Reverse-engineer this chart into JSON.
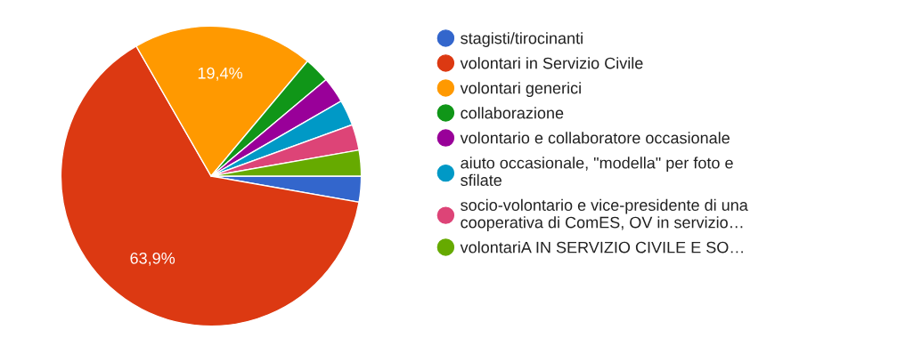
{
  "chart_data": {
    "type": "pie",
    "legend": "right",
    "categories": [
      "stagisti/tirocinanti",
      "volontari in Servizio Civile",
      "volontari generici",
      "collaborazione",
      "volontario e collaboratore occasionale",
      "aiuto occasionale, \"modella\" per foto e\nsfilate",
      "socio-volontario e vice-presidente di una\ncooperativa di ComES, OV in servizio…",
      "volontariA IN SERVIZIO CIVILE E SO…"
    ],
    "values": [
      2.78,
      63.9,
      19.4,
      2.78,
      2.78,
      2.78,
      2.78,
      2.78
    ],
    "value_labels": [
      null,
      "63,9%",
      "19,4%",
      null,
      null,
      null,
      null,
      null
    ],
    "colors": [
      "#3366cc",
      "#dc3912",
      "#ff9900",
      "#109618",
      "#990099",
      "#0099c6",
      "#dd4477",
      "#66aa00"
    ]
  }
}
